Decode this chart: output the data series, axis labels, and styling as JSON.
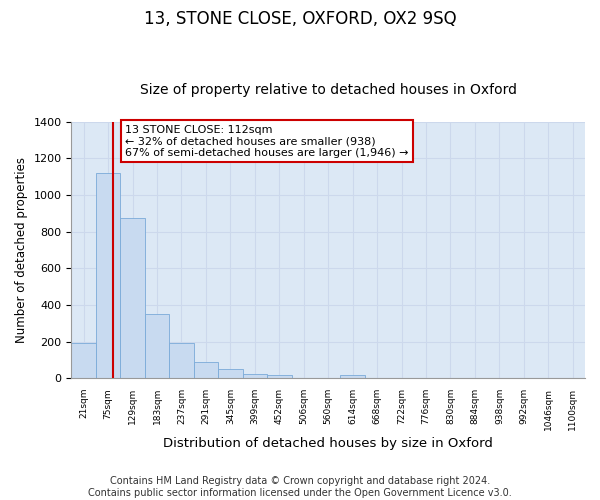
{
  "title": "13, STONE CLOSE, OXFORD, OX2 9SQ",
  "subtitle": "Size of property relative to detached houses in Oxford",
  "xlabel": "Distribution of detached houses by size in Oxford",
  "ylabel": "Number of detached properties",
  "bin_labels": [
    "21sqm",
    "75sqm",
    "129sqm",
    "183sqm",
    "237sqm",
    "291sqm",
    "345sqm",
    "399sqm",
    "452sqm",
    "506sqm",
    "560sqm",
    "614sqm",
    "668sqm",
    "722sqm",
    "776sqm",
    "830sqm",
    "884sqm",
    "938sqm",
    "992sqm",
    "1046sqm",
    "1100sqm"
  ],
  "bar_heights": [
    193,
    1118,
    876,
    352,
    192,
    90,
    52,
    22,
    15,
    0,
    0,
    15,
    0,
    0,
    0,
    0,
    0,
    0,
    0,
    0,
    0
  ],
  "bar_color": "#c8daf0",
  "bar_edge_color": "#7aaad8",
  "vline_color": "#cc0000",
  "annotation_text": "13 STONE CLOSE: 112sqm\n← 32% of detached houses are smaller (938)\n67% of semi-detached houses are larger (1,946) →",
  "annotation_box_color": "#ffffff",
  "annotation_box_edge": "#cc0000",
  "ylim": [
    0,
    1400
  ],
  "yticks": [
    0,
    200,
    400,
    600,
    800,
    1000,
    1200,
    1400
  ],
  "grid_color": "#ccd8ec",
  "bg_color": "#dce8f5",
  "footer_text": "Contains HM Land Registry data © Crown copyright and database right 2024.\nContains public sector information licensed under the Open Government Licence v3.0.",
  "title_fontsize": 12,
  "subtitle_fontsize": 10,
  "xlabel_fontsize": 9.5,
  "ylabel_fontsize": 8.5,
  "footer_fontsize": 7,
  "vline_xdata": 1.72
}
